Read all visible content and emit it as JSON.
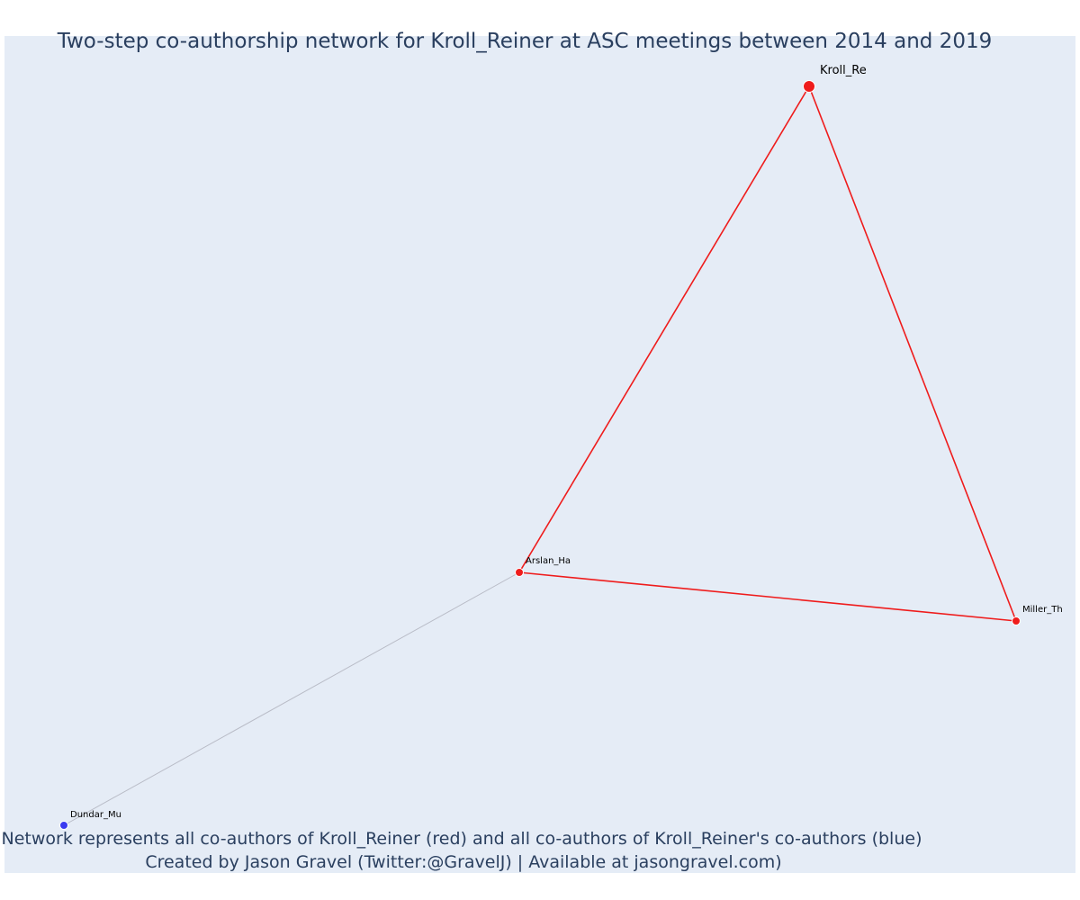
{
  "title": "Two-step co-authorship network for Kroll_Reiner at ASC meetings between 2014 and 2019",
  "annotation_line1": "Network represents all co-authors of Kroll_Reiner (red) and all co-authors of Kroll_Reiner's co-authors (blue)",
  "annotation_line2": "Created by Jason Gravel (Twitter:@GravelJ) | Available at jasongravel.com)",
  "colors": {
    "plot_background": "#e5ecf6",
    "title": "#2a3f5f",
    "first_step": "#ef1c1c",
    "second_step": "#3b3bf0",
    "second_step_edge": "#b9bcc7"
  },
  "nodes": [
    {
      "id": "Kroll_Re",
      "group": "focal"
    },
    {
      "id": "Arslan_Ha",
      "group": "coauthor"
    },
    {
      "id": "Miller_Th",
      "group": "coauthor"
    },
    {
      "id": "Dundar_Mu",
      "group": "coauthor-of-coauthor"
    }
  ],
  "edges": [
    {
      "source": "Kroll_Re",
      "target": "Arslan_Ha",
      "group": "first_step"
    },
    {
      "source": "Kroll_Re",
      "target": "Miller_Th",
      "group": "first_step"
    },
    {
      "source": "Arslan_Ha",
      "target": "Miller_Th",
      "group": "first_step"
    },
    {
      "source": "Arslan_Ha",
      "target": "Dundar_Mu",
      "group": "second_step"
    }
  ]
}
